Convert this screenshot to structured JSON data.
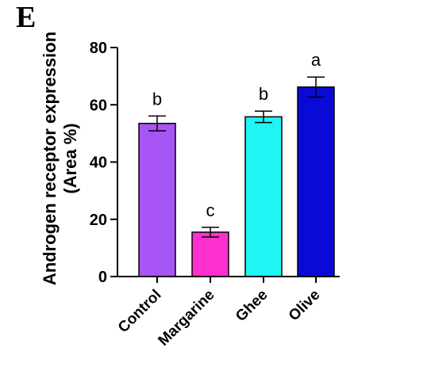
{
  "panel_label": "E",
  "chart_data": {
    "type": "bar",
    "ylabel_line1": "Androgen receptor expression",
    "ylabel_line2": "(Area %)",
    "ylim": [
      0,
      80
    ],
    "yticks": [
      0,
      20,
      40,
      60,
      80
    ],
    "grid": false,
    "categories": [
      "Control",
      "Margarine",
      "Ghee",
      "Olive"
    ],
    "values": [
      53.5,
      15.5,
      55.8,
      66.2
    ],
    "errors": [
      2.6,
      1.7,
      2.0,
      3.5
    ],
    "significance": [
      "b",
      "c",
      "b",
      "a"
    ],
    "colors": [
      "#a855f7",
      "#ff2fcf",
      "#1ff5f2",
      "#0a0ad8"
    ]
  }
}
